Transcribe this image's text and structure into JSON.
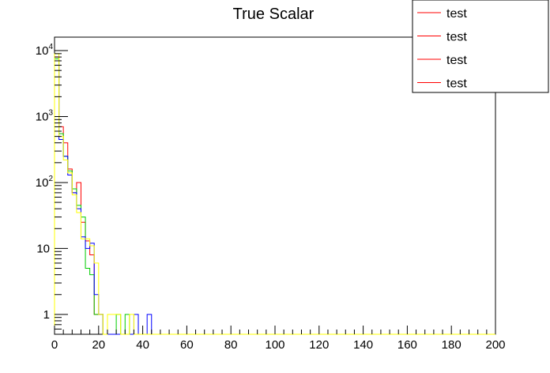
{
  "chart_data": {
    "type": "histogram",
    "title": "True Scalar",
    "xlabel": "",
    "ylabel": "",
    "xlim": [
      0,
      200
    ],
    "ylim": [
      0.5,
      16000
    ],
    "y_scale": "log",
    "bin_width": 2,
    "x_ticks": [
      0,
      20,
      40,
      60,
      80,
      100,
      120,
      140,
      160,
      180,
      200
    ],
    "y_ticks": [
      {
        "value": 1,
        "base": "1",
        "exp": ""
      },
      {
        "value": 10,
        "base": "10",
        "exp": ""
      },
      {
        "value": 100,
        "base": "10",
        "exp": "2"
      },
      {
        "value": 1000,
        "base": "10",
        "exp": "3"
      },
      {
        "value": 10000,
        "base": "10",
        "exp": "4"
      }
    ],
    "grid": false,
    "legend_position": "top-right",
    "legend": [
      {
        "label": "test",
        "color": "#ff0000"
      },
      {
        "label": "test",
        "color": "#ff0000"
      },
      {
        "label": "test",
        "color": "#ff0000"
      },
      {
        "label": "test",
        "color": "#ff0000"
      }
    ],
    "series": [
      {
        "color": "#ff0000",
        "bins": [
          [
            0,
            8000
          ],
          [
            2,
            700
          ],
          [
            4,
            400
          ],
          [
            6,
            160
          ],
          [
            8,
            70
          ],
          [
            10,
            100
          ],
          [
            12,
            25
          ],
          [
            14,
            13
          ],
          [
            16,
            8
          ],
          [
            18,
            1
          ],
          [
            20,
            1
          ]
        ]
      },
      {
        "color": "#00cc00",
        "bins": [
          [
            0,
            7500
          ],
          [
            2,
            550
          ],
          [
            4,
            250
          ],
          [
            6,
            150
          ],
          [
            8,
            80
          ],
          [
            10,
            45
          ],
          [
            12,
            30
          ],
          [
            14,
            5
          ],
          [
            16,
            4
          ],
          [
            18,
            1
          ],
          [
            20,
            1
          ],
          [
            22,
            0
          ],
          [
            24,
            0
          ],
          [
            26,
            0
          ],
          [
            28,
            1
          ],
          [
            30,
            0
          ],
          [
            32,
            1
          ]
        ]
      },
      {
        "color": "#0000ff",
        "bins": [
          [
            0,
            6000
          ],
          [
            2,
            450
          ],
          [
            4,
            250
          ],
          [
            6,
            130
          ],
          [
            8,
            70
          ],
          [
            10,
            40
          ],
          [
            12,
            15
          ],
          [
            14,
            10
          ],
          [
            16,
            12
          ],
          [
            18,
            2
          ],
          [
            20,
            1
          ],
          [
            22,
            0
          ],
          [
            24,
            0
          ],
          [
            26,
            0
          ],
          [
            28,
            0
          ],
          [
            30,
            0
          ],
          [
            32,
            0
          ],
          [
            34,
            0
          ],
          [
            36,
            1
          ],
          [
            38,
            0
          ],
          [
            40,
            0
          ],
          [
            42,
            1
          ]
        ]
      },
      {
        "color": "#ffff00",
        "bins": [
          [
            0,
            9000
          ],
          [
            2,
            500
          ],
          [
            4,
            220
          ],
          [
            6,
            140
          ],
          [
            8,
            65
          ],
          [
            10,
            35
          ],
          [
            12,
            14
          ],
          [
            14,
            14
          ],
          [
            16,
            11
          ],
          [
            18,
            6
          ],
          [
            20,
            1
          ],
          [
            22,
            0
          ],
          [
            24,
            1
          ],
          [
            26,
            1
          ],
          [
            28,
            1
          ],
          [
            30,
            0
          ],
          [
            32,
            0
          ],
          [
            34,
            1
          ],
          [
            36,
            0
          ],
          [
            38,
            0
          ],
          [
            40,
            0
          ],
          [
            42,
            0
          ],
          [
            44,
            0
          ],
          [
            46,
            0
          ],
          [
            48,
            0
          ],
          [
            50,
            0
          ],
          [
            52,
            0
          ],
          [
            54,
            0
          ],
          [
            56,
            0
          ],
          [
            58,
            0
          ],
          [
            60,
            0
          ],
          [
            62,
            0
          ],
          [
            64,
            0
          ],
          [
            66,
            0
          ],
          [
            68,
            0
          ],
          [
            70,
            0
          ],
          [
            72,
            0
          ],
          [
            74,
            0
          ],
          [
            76,
            0
          ],
          [
            78,
            0
          ],
          [
            80,
            0
          ],
          [
            82,
            0
          ],
          [
            84,
            0
          ],
          [
            86,
            0
          ],
          [
            88,
            0
          ],
          [
            90,
            0
          ],
          [
            92,
            0
          ],
          [
            94,
            0
          ],
          [
            96,
            0
          ],
          [
            98,
            0
          ],
          [
            100,
            0
          ],
          [
            102,
            0
          ],
          [
            104,
            0
          ],
          [
            106,
            0
          ],
          [
            108,
            0
          ],
          [
            110,
            0
          ],
          [
            112,
            0
          ],
          [
            114,
            0
          ],
          [
            116,
            0
          ],
          [
            118,
            0
          ],
          [
            120,
            0
          ],
          [
            122,
            0
          ],
          [
            124,
            0
          ],
          [
            126,
            0
          ],
          [
            128,
            0
          ],
          [
            130,
            0
          ],
          [
            132,
            0
          ],
          [
            134,
            0
          ],
          [
            136,
            0
          ],
          [
            138,
            0
          ],
          [
            140,
            0
          ],
          [
            142,
            0
          ],
          [
            144,
            0
          ],
          [
            146,
            0
          ],
          [
            148,
            0
          ],
          [
            150,
            0
          ],
          [
            152,
            0
          ],
          [
            154,
            0
          ],
          [
            156,
            0
          ],
          [
            158,
            0
          ],
          [
            160,
            0
          ],
          [
            162,
            0
          ],
          [
            164,
            0
          ],
          [
            166,
            0
          ],
          [
            168,
            0
          ],
          [
            170,
            0
          ],
          [
            172,
            0
          ],
          [
            174,
            0
          ],
          [
            176,
            0
          ],
          [
            178,
            0
          ],
          [
            180,
            0
          ],
          [
            182,
            0
          ],
          [
            184,
            0
          ],
          [
            186,
            0
          ],
          [
            188,
            0
          ],
          [
            190,
            0
          ],
          [
            192,
            0
          ],
          [
            194,
            0
          ],
          [
            196,
            0
          ],
          [
            198,
            0
          ]
        ]
      }
    ]
  }
}
